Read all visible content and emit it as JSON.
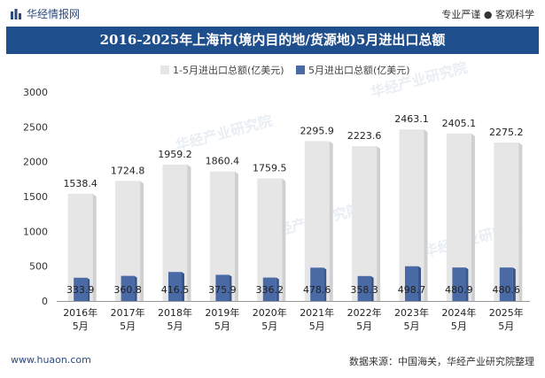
{
  "header": {
    "site_name": "华经情报网",
    "logo_icon": "bar-logo-icon",
    "slogan": "专业严谨 ● 客观科学"
  },
  "chart_data": {
    "type": "bar",
    "title": "2016-2025年上海市(境内目的地/货源地)5月进出口总额",
    "categories": [
      "2016年\n5月",
      "2017年\n5月",
      "2018年\n5月",
      "2019年\n5月",
      "2020年\n5月",
      "2021年\n5月",
      "2022年\n5月",
      "2023年\n5月",
      "2024年\n5月",
      "2025年\n5月"
    ],
    "series": [
      {
        "name": "1-5月进出口总额(亿美元)",
        "color": "#e6e6e6",
        "values": [
          1538.4,
          1724.8,
          1959.2,
          1860.4,
          1759.5,
          2295.9,
          2223.6,
          2463.1,
          2405.1,
          2275.2
        ]
      },
      {
        "name": "5月进出口总额(亿美元)",
        "color": "#4a6aa5",
        "values": [
          333.9,
          360.8,
          416.5,
          375.9,
          336.2,
          478.6,
          358.3,
          498.7,
          480.9,
          480.6
        ]
      }
    ],
    "ylim": [
      0,
      3000
    ],
    "yticks": [
      0,
      500,
      1000,
      1500,
      2000,
      2500,
      3000
    ],
    "xlabel": "",
    "ylabel": "",
    "grid": false,
    "legend": "top-center"
  },
  "watermark": "华经产业研究院",
  "footer": {
    "url": "www.huaon.com",
    "source": "数据来源：中国海关，华经产业研究院整理"
  }
}
